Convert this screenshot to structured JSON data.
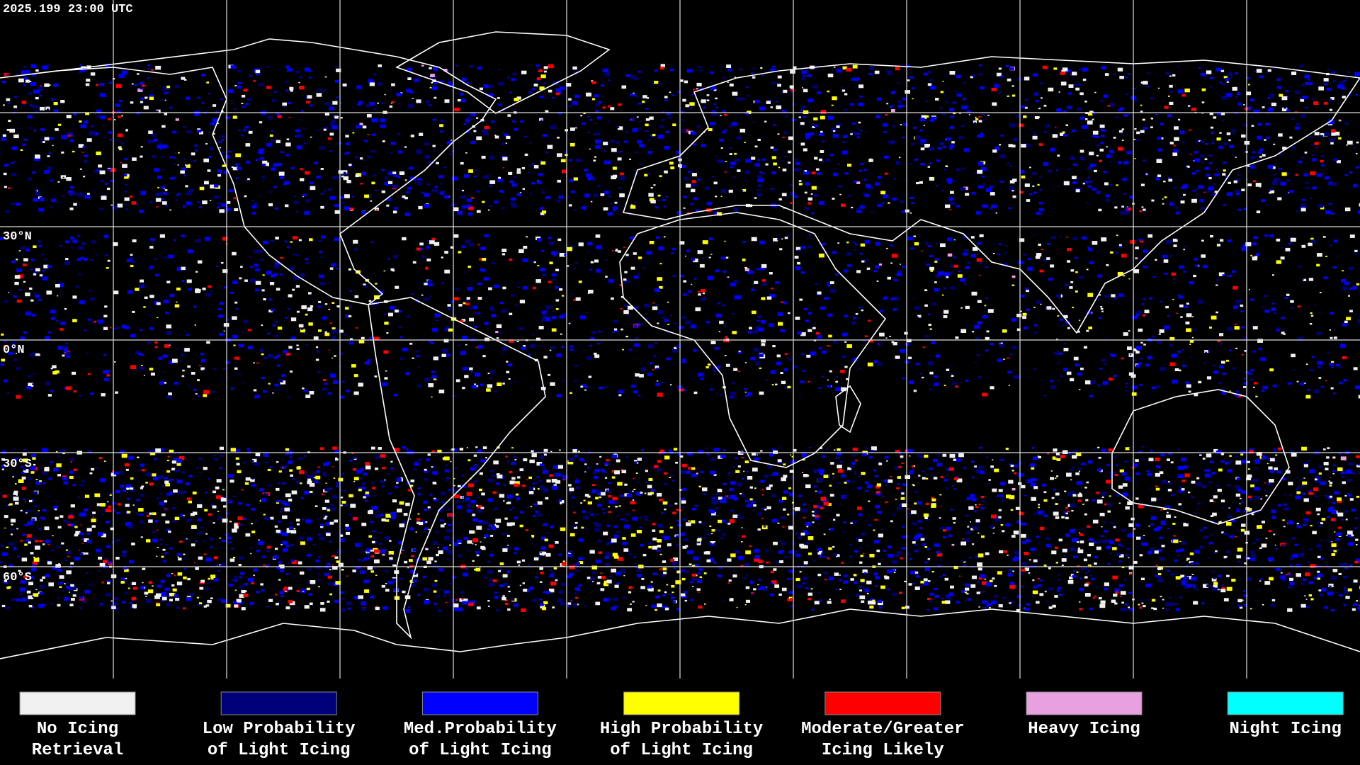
{
  "header": {
    "timestamp": "2025.199 23:00 UTC"
  },
  "latitude_labels": [
    "30°N",
    "0°N",
    "30°S",
    "60°S"
  ],
  "legend": [
    {
      "lines": [
        "No Icing",
        "Retrieval"
      ],
      "color": "#f0f0f0"
    },
    {
      "lines": [
        "Low Probability",
        "of Light Icing"
      ],
      "color": "#00007a"
    },
    {
      "lines": [
        "Med.Probability",
        "of Light Icing"
      ],
      "color": "#0000ff"
    },
    {
      "lines": [
        "High Probability",
        "of Light Icing"
      ],
      "color": "#ffff00"
    },
    {
      "lines": [
        "Moderate/Greater",
        "Icing Likely"
      ],
      "color": "#ff0000"
    },
    {
      "lines": [
        "Heavy Icing"
      ],
      "color": "#e8a0e0"
    },
    {
      "lines": [
        "Night Icing"
      ],
      "color": "#00ffff"
    }
  ]
}
